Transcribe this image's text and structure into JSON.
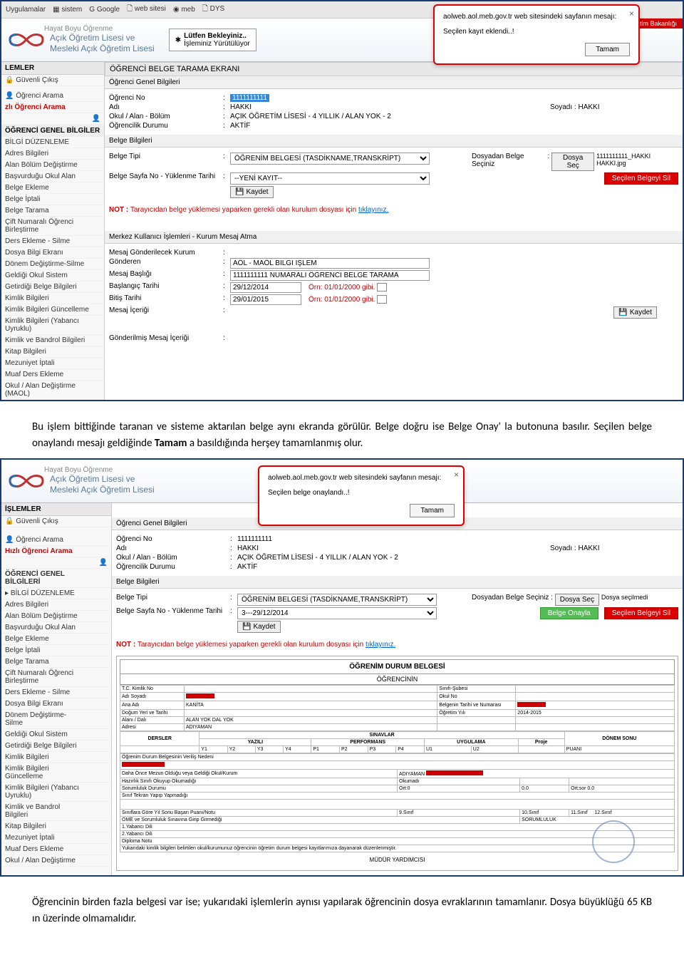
{
  "bookmarks": {
    "uygulamalar": "Uygulamalar",
    "sistem": "sistem",
    "google": "Google",
    "websitesi": "web sitesi",
    "meb": "meb",
    "dys": "DYS"
  },
  "brand": {
    "line1": "Açık Öğretim Lisesi ve",
    "line2": "Mesleki Açık Öğretim Lisesi",
    "sub": "Hayat Boyu Öğrenme"
  },
  "egitimBar": "Eğitim Bakanlığı",
  "loading": {
    "line1": "Lütfen Bekleyiniz..",
    "line2": "İşleminiz Yürütülüyor"
  },
  "alert1": {
    "title": "aolweb.aol.meb.gov.tr web sitesindeki sayfanın mesajı:",
    "msg": "Seçilen kayıt eklendi..!",
    "btn": "Tamam"
  },
  "alert2": {
    "title": "aolweb.aol.meb.gov.tr web sitesindeki sayfanın mesajı:",
    "msg": "Seçilen belge onaylandı..!",
    "btn": "Tamam"
  },
  "sidebar": {
    "lemler": "LEMLER",
    "guvenli": "Güvenli Çıkış",
    "ogrenciArama": "Öğrenci Arama",
    "hizli": "zlı Öğrenci Arama",
    "hizliFull": "Hızlı Öğrenci Arama",
    "genel": "ÖĞRENCİ GENEL BİLGİLER",
    "genelFull": "ÖĞRENCİ GENEL\nBİLGİLERİ",
    "bilgiDuzenleme": "BİLGİ DÜZENLEME",
    "items1": [
      "Adres Bilgileri",
      "Alan Bölüm Değiştirme",
      "Başvurduğu Okul Alan",
      "Belge Ekleme",
      "Belge İptali",
      "Belge Tarama",
      "Çift Numaralı Öğrenci Birleştirme",
      "Ders Ekleme - Silme",
      "Dosya Bilgi Ekranı",
      "Dönem Değiştirme-Silme",
      "Geldiği Okul Sistem",
      "Getirdiği Belge Bilgileri",
      "Kimlik Bilgileri",
      "Kimlik Bilgileri Güncelleme",
      "Kimlik Bilgileri (Yabancı Uyruklu)",
      "Kimlik ve Bandrol Bilgileri",
      "Kitap Bilgileri",
      "Mezuniyet İptali",
      "Muaf Ders Ekleme",
      "Okul / Alan Değiştirme (MAOL)"
    ],
    "items2": [
      "Adres Bilgileri",
      "Alan Bölüm Değiştirme",
      "Başvurduğu Okul Alan",
      "Belge Ekleme",
      "Belge İptali",
      "Belge Tarama",
      "Çift Numaralı Öğrenci\nBirleştirme",
      "Ders Ekleme - Silme",
      "Dosya Bilgi Ekranı",
      "Dönem Değiştirme-\nSilme",
      "Geldiği Okul Sistem",
      "Getirdiği Belge Bilgileri",
      "Kimlik Bilgileri",
      "Kimlik Bilgileri\nGüncelleme",
      "Kimlik Bilgileri (Yabancı\nUyruklu)",
      "Kimlik ve Bandrol\nBilgileri",
      "Kitap Bilgileri",
      "Mezuniyet İptali",
      "Muaf Ders Ekleme",
      "Okul / Alan Değiştirme"
    ]
  },
  "content": {
    "ekranTitle": "ÖĞRENCİ BELGE TARAMA EKRANI",
    "genelBilgi": "Öğrenci Genel Bilgileri",
    "ogrenciNo": "Öğrenci No",
    "ogrenciNoVal": "1111111111",
    "adi": "Adı",
    "adiVal": "HAKKI",
    "soyadi": "Soyadı",
    "soyadiVal": "HAKKI",
    "okulAlan": "Okul / Alan - Bölüm",
    "okulAlanVal": "AÇIK ÖĞRETİM LİSESİ - 4 YILLIK / ALAN YOK - 2",
    "ogrencilikDurumu": "Öğrencilik Durumu",
    "ogrencilikDurumuVal": "AKTİF",
    "belgeBilgileri": "Belge Bilgileri",
    "belgeTipi": "Belge Tipi",
    "belgeTipiVal1": "ÖĞRENİM BELGESİ (TASDİKNAME,TRANSKRİPT)",
    "belgeSayfa": "Belge Sayfa No - Yüklenme Tarihi",
    "yeniKayit": "--YENİ KAYIT--",
    "belgeSayfaVal2": "3---29/12/2014",
    "dosyadan": "Dosyadan Belge Seçiniz",
    "dosyaSec": "Dosya Seç",
    "dosyaAdi": "1111111111_HAKKI HAKKI.jpg",
    "dosyaSecilmedi": "Dosya seçilmedi",
    "kaydet": "Kaydet",
    "secilenSil": "Seçilen Belgeyi Sil",
    "belgeOnayla": "Belge Onayla",
    "not": "NOT :",
    "notText": "Tarayıcıdan belge yüklemesi yaparken gerekli olan kurulum dosyası için ",
    "tiklayiniz": "tıklayınız.",
    "merkezTitle": "Merkez Kullanıcı İşlemleri - Kurum Mesaj Atma",
    "mesajGonderilecek": "Mesaj Gönderilecek Kurum",
    "gonderen": "Gönderen",
    "gonderenVal": "AÖL - MAÖL BİLGİ İŞLEM",
    "mesajBasligi": "Mesaj Başlığı",
    "mesajBasligiVal": "1111111111 NUMARALI ÖĞRENCİ BELGE TARAMA",
    "baslangicTarihi": "Başlangıç Tarihi",
    "baslangicVal": "29/12/2014",
    "bitisTarihi": "Bitiş Tarihi",
    "bitisVal": "29/01/2015",
    "orn": "Örn: 01/01/2000 gibi.",
    "mesajIcerigi": "Mesaj İçeriği",
    "gonderilmis": "Gönderilmiş Mesaj İçeriği",
    "islemler": "İŞLEMLER"
  },
  "paragraph1": "Bu işlem bittiğinde taranan ve sisteme aktarılan belge aynı ekranda görülür. Belge doğru ise Belge Onay' la butonuna basılır. Seçilen belge onaylandı mesajı geldiğinde ",
  "paragraph1bold": "Tamam",
  "paragraph1cont": " a basıldığında herşey tamamlanmış olur.",
  "paragraph2": "Öğrencinin birden fazla belgesi var ise; yukarıdaki işlemlerin aynısı yapılarak öğrencinin dosya evraklarının tamamlanır. Dosya büyüklüğü 65 KB ın üzerinde olmamalıdır.",
  "doc": {
    "title": "ÖĞRENİM DURUM BELGESİ",
    "subtitle": "ÖĞRENCİNİN",
    "tcKimlik": "T.C. Kimlik No",
    "adiSoyadi": "Adı Soyadı",
    "anaAdi": "Ana Adı",
    "anaAdiVal": "KANİTA",
    "dogum": "Doğum Yeri ve Tarihi",
    "alani": "Alanı / Dalı",
    "alaniVal": "ALAN YOK DAL YOK",
    "adresi": "Adresi",
    "adresiVal": "ADIYAMAN",
    "sinifi": "Sınıfı-Şubesi",
    "okulNo": "Okul No",
    "belgeninTarih": "Belgenin Tarihi ve Numarası",
    "ogretimYili": "Öğretim Yılı",
    "ogretimYiliVal": "2014-2015",
    "dersler": "DERSLER",
    "sinavlar": "SINAVLAR",
    "yazili": "YAZILI",
    "performans": "PERFORMANS",
    "uygulama": "UYGULAMA",
    "donemSonu": "DÖNEM SONU",
    "proje": "Proje",
    "mudur": "MÜDÜR YARDIMCISI"
  }
}
